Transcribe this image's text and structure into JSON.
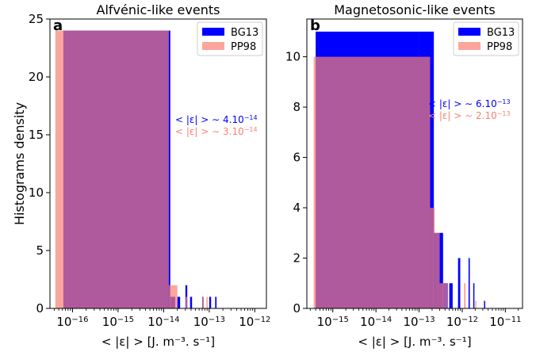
{
  "chart_data": [
    {
      "type": "bar",
      "panel_letter": "a",
      "title": "Alfvénic-like events",
      "xlabel": "< |ε| > [J. m⁻³. s⁻¹]",
      "ylabel": "Histograms density",
      "x_scale": "log",
      "xlim": [
        3.2e-17,
        1.8e-12
      ],
      "ylim": [
        0,
        25
      ],
      "yticks": [
        0,
        5,
        10,
        15,
        20,
        25
      ],
      "xtick_exponents": [
        -16,
        -15,
        -14,
        -13,
        -12
      ],
      "grid": false,
      "legend_position": "top-right",
      "series": [
        {
          "name": "BG13",
          "color": "#0000ff",
          "alpha": 1.0,
          "bins": [
            [
              6.3e-17,
              1.4e-14,
              24
            ],
            [
              1.4e-14,
              1.8e-14,
              1
            ],
            [
              2e-14,
              2.3e-14,
              1
            ],
            [
              3e-14,
              3.3e-14,
              2
            ],
            [
              3.8e-14,
              4.2e-14,
              1
            ],
            [
              7e-14,
              7.5e-14,
              1
            ],
            [
              1e-13,
              1.1e-13,
              1
            ],
            [
              1.35e-13,
              1.45e-13,
              1
            ]
          ]
        },
        {
          "name": "PP98",
          "color": "#fa8072",
          "alpha": 0.7,
          "bins": [
            [
              4.2e-17,
              6.3e-17,
              24
            ],
            [
              6.3e-17,
              1.3e-14,
              24
            ],
            [
              1.3e-14,
              2e-14,
              2
            ],
            [
              3e-14,
              3.3e-14,
              1
            ],
            [
              7e-14,
              7.6e-14,
              1
            ],
            [
              8.7e-14,
              9.3e-14,
              1
            ]
          ]
        }
      ],
      "annotations": [
        {
          "text_html": "&lt; |ε| &gt; ∼ 4.10<tspan baseline-shift=\"super\" font-size=\"8\">−14</tspan>",
          "color": "#0000ff"
        },
        {
          "text_html": "&lt; |ε| &gt; ∼ 3.10<tspan baseline-shift=\"super\" font-size=\"8\">−14</tspan>",
          "color": "#fa8072"
        }
      ]
    },
    {
      "type": "bar",
      "panel_letter": "b",
      "title": "Magnetosonic-like events",
      "xlabel": "< |ε| > [J. m⁻³. s⁻¹]",
      "ylabel": "",
      "x_scale": "log",
      "xlim": [
        2.5e-16,
        2.5e-11
      ],
      "ylim": [
        0,
        11.5
      ],
      "yticks": [
        0,
        2,
        4,
        6,
        8,
        10
      ],
      "xtick_exponents": [
        -15,
        -14,
        -13,
        -12,
        -11
      ],
      "grid": false,
      "legend_position": "top-right",
      "series": [
        {
          "name": "BG13",
          "color": "#0000ff",
          "alpha": 1.0,
          "bins": [
            [
              4e-16,
              1e-13,
              11
            ],
            [
              1e-13,
              2.2e-13,
              11
            ],
            [
              2.2e-13,
              3.6e-13,
              3
            ],
            [
              3.6e-13,
              4.6e-13,
              1
            ],
            [
              5e-13,
              6e-13,
              1
            ],
            [
              8e-13,
              9e-13,
              2
            ],
            [
              1.4e-12,
              1.5e-12,
              2
            ],
            [
              1.8e-12,
              1.9e-12,
              1
            ],
            [
              3.2e-12,
              3.4e-12,
              0.3
            ]
          ]
        },
        {
          "name": "PP98",
          "color": "#fa8072",
          "alpha": 0.7,
          "bins": [
            [
              3.6e-16,
              1e-13,
              10
            ],
            [
              1e-13,
              1.8e-13,
              10
            ],
            [
              1.8e-13,
              2.3e-13,
              4
            ],
            [
              2.3e-13,
              3e-13,
              3
            ],
            [
              3e-13,
              4.5e-13,
              1
            ],
            [
              1.1e-12,
              1.2e-12,
              1
            ],
            [
              2e-12,
              2.1e-12,
              0.3
            ]
          ]
        }
      ],
      "annotations": [
        {
          "text_html": "&lt; |ε| &gt; ∼ 6.10<tspan baseline-shift=\"super\" font-size=\"8\">−13</tspan>",
          "color": "#0000ff"
        },
        {
          "text_html": "&lt; |ε| &gt; ∼ 2.10<tspan baseline-shift=\"super\" font-size=\"8\">−13</tspan>",
          "color": "#fa8072"
        }
      ]
    }
  ]
}
